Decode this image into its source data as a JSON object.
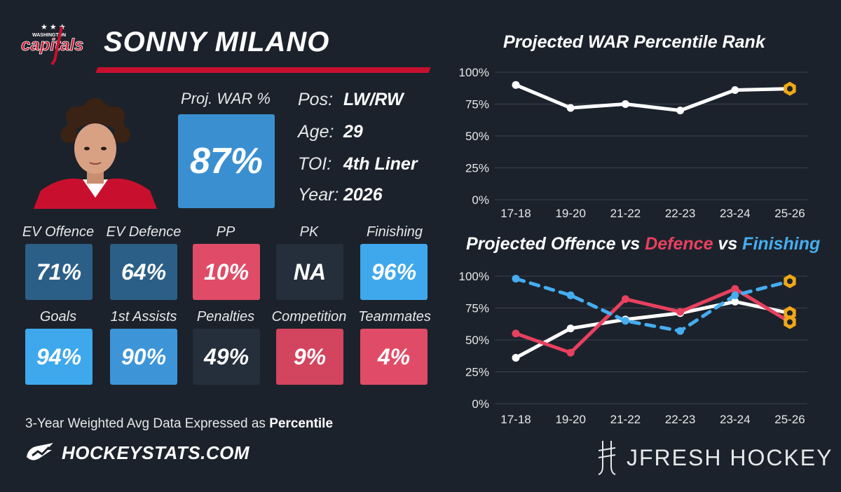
{
  "player": {
    "name": "SONNY MILANO",
    "team_logo_text": "WASHINGTON capitals"
  },
  "war": {
    "label": "Proj. WAR %",
    "value": "87%"
  },
  "info": [
    {
      "key": "Pos:",
      "value": "LW/RW"
    },
    {
      "key": "Age:",
      "value": "29"
    },
    {
      "key": "TOI:",
      "value": "4th Liner"
    },
    {
      "key": "Year:",
      "value": "2026"
    }
  ],
  "stats_row1": [
    {
      "label": "EV Offence",
      "value": "71%",
      "color": "#2b5f87"
    },
    {
      "label": "EV Defence",
      "value": "64%",
      "color": "#2b5f87"
    },
    {
      "label": "PP",
      "value": "10%",
      "color": "#e04c67"
    },
    {
      "label": "PK",
      "value": "NA",
      "color": "#252e3b"
    },
    {
      "label": "Finishing",
      "value": "96%",
      "color": "#3fa8ec"
    }
  ],
  "stats_row2": [
    {
      "label": "Goals",
      "value": "94%",
      "color": "#3fa8ec"
    },
    {
      "label": "1st Assists",
      "value": "90%",
      "color": "#3d95d8"
    },
    {
      "label": "Penalties",
      "value": "49%",
      "color": "#252e3b"
    },
    {
      "label": "Competition",
      "value": "9%",
      "color": "#d3445f"
    },
    {
      "label": "Teammates",
      "value": "4%",
      "color": "#e04c67"
    }
  ],
  "footer": {
    "note_prefix": "3-Year Weighted Avg Data Expressed as ",
    "note_bold": "Percentile",
    "hockeystats": "HOCKEYSTATS.COM",
    "jfresh": "JFRESH HOCKEY"
  },
  "colors": {
    "white_line": "#ffffff",
    "red_line": "#e8405f",
    "blue_line": "#45adf0",
    "projection_marker": "#f0a818"
  },
  "chart_data": [
    {
      "type": "line",
      "title": "Projected WAR Percentile Rank",
      "x": [
        "17-18",
        "19-20",
        "21-22",
        "22-23",
        "23-24",
        "25-26"
      ],
      "yticks": [
        "100%",
        "75%",
        "50%",
        "25%",
        "0%"
      ],
      "ylim": [
        0,
        100
      ],
      "series": [
        {
          "values": [
            90,
            72,
            75,
            70,
            86,
            87
          ],
          "color": "#ffffff",
          "style": "solid"
        }
      ],
      "projection_index": 5
    },
    {
      "type": "line",
      "title_parts": [
        "Projected Offence vs ",
        "Defence",
        " vs ",
        "Finishing"
      ],
      "x": [
        "17-18",
        "19-20",
        "21-22",
        "22-23",
        "23-24",
        "25-26"
      ],
      "yticks": [
        "100%",
        "75%",
        "50%",
        "25%",
        "0%"
      ],
      "ylim": [
        0,
        100
      ],
      "series": [
        {
          "values": [
            36,
            59,
            66,
            71,
            80,
            71
          ],
          "color": "#ffffff",
          "style": "solid"
        },
        {
          "values": [
            55,
            40,
            82,
            72,
            90,
            64
          ],
          "color": "#e8405f",
          "style": "solid"
        },
        {
          "values": [
            98,
            85,
            65,
            57,
            85,
            96
          ],
          "color": "#45adf0",
          "style": "dashed"
        }
      ],
      "projection_index": 5
    }
  ]
}
